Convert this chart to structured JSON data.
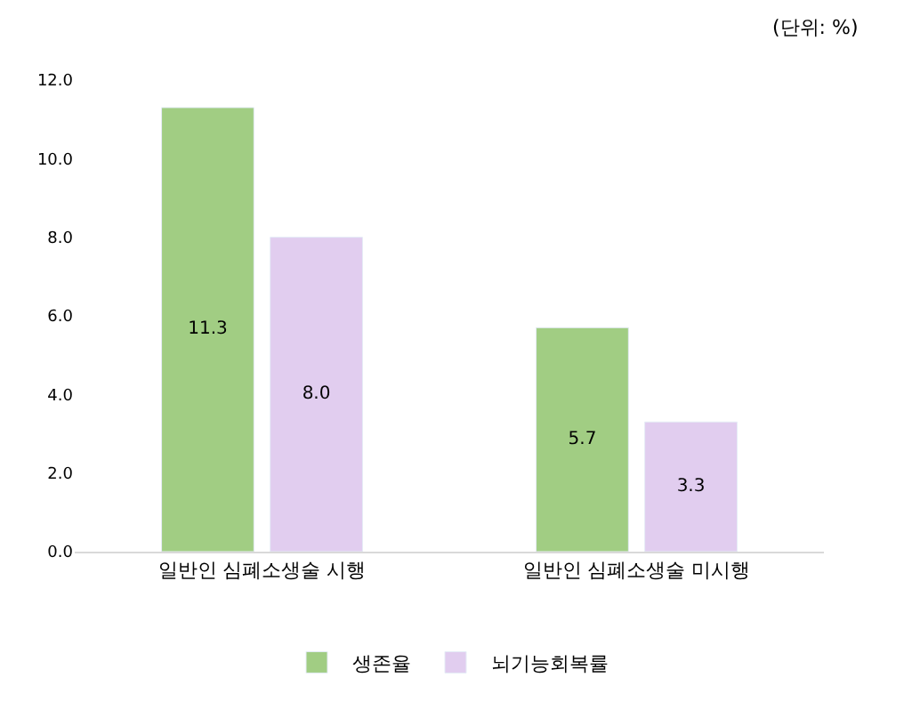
{
  "chart_data": {
    "type": "bar",
    "categories": [
      "일반인 심폐소생술 시행",
      "일반인 심폐소생술 미시행"
    ],
    "series": [
      {
        "name": "생존율",
        "color": "#a1cd83",
        "values": [
          11.3,
          5.7
        ],
        "value_labels": [
          "11.3",
          "5.7"
        ]
      },
      {
        "name": "뇌기능회복률",
        "color": "#e1cdef",
        "values": [
          8.0,
          3.3
        ],
        "value_labels": [
          "8.0",
          "3.3"
        ]
      }
    ],
    "ylim": [
      0,
      12
    ],
    "yticks": [
      {
        "value": 0,
        "label": "0.0"
      },
      {
        "value": 2,
        "label": "2.0"
      },
      {
        "value": 4,
        "label": "4.0"
      },
      {
        "value": 6,
        "label": "6.0"
      },
      {
        "value": 8,
        "label": "8.0"
      },
      {
        "value": 10,
        "label": "10.0"
      },
      {
        "value": 12,
        "label": "12.0"
      }
    ],
    "annotations": [
      "(단위: %)"
    ],
    "legend": "bottom"
  }
}
